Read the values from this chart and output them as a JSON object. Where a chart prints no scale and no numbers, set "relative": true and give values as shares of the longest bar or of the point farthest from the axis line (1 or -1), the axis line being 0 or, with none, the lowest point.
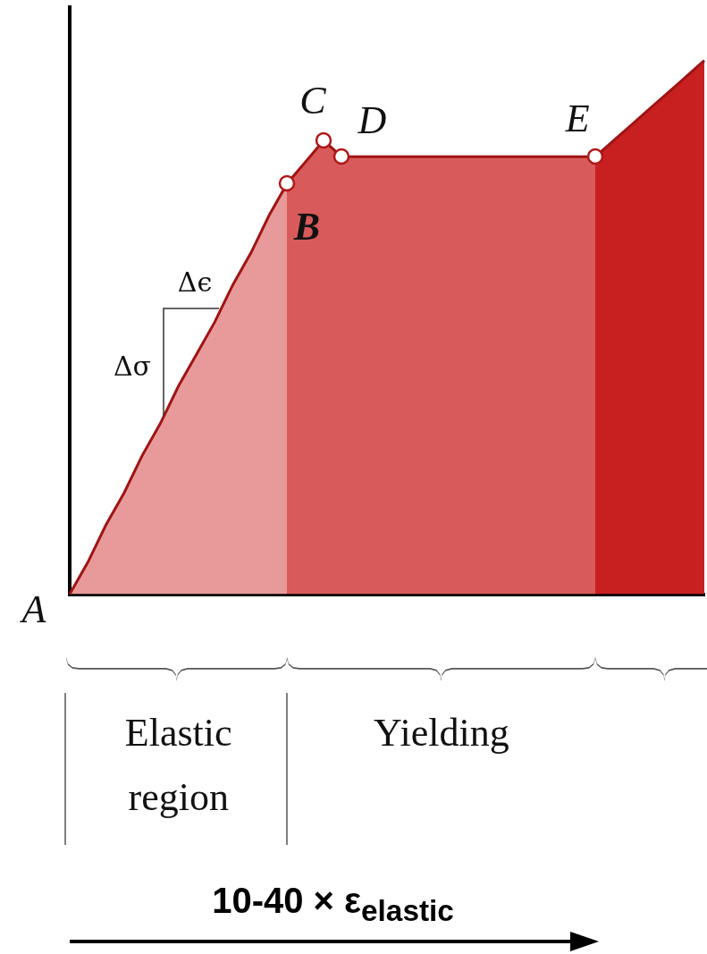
{
  "chart_data": {
    "type": "area",
    "relative": true,
    "grid": false,
    "legend": false,
    "categories": [
      null,
      null,
      null,
      null,
      null,
      null,
      null,
      null,
      null,
      null,
      null,
      null,
      null,
      null,
      null,
      null,
      null,
      null,
      null,
      null,
      null,
      null,
      null,
      null,
      null,
      null,
      null,
      null,
      null,
      null,
      null,
      null,
      null,
      null,
      null,
      null
    ],
    "series": [
      {
        "color": "#a01414",
        "values": [
          0,
          0.06,
          0.13,
          0.19,
          0.26,
          0.32,
          0.39,
          0.45,
          0.51,
          0.58,
          0.64,
          0.71,
          0.77,
          0.81,
          0.85,
          0.82,
          0.82,
          0.82,
          0.82,
          0.82,
          0.82,
          0.82,
          0.82,
          0.82,
          0.82,
          0.82,
          0.82,
          0.82,
          0.82,
          0.82,
          0.85,
          0.88,
          0.91,
          0.94,
          0.97,
          1
        ],
        "colors": [
          "#e89a9a",
          "#e89a9a",
          "#e89a9a",
          "#e89a9a",
          "#e89a9a",
          "#e89a9a",
          "#e89a9a",
          "#e89a9a",
          "#e89a9a",
          "#e89a9a",
          "#e89a9a",
          "#e89a9a",
          "#d95a5a",
          "#d95a5a",
          "#d95a5a",
          "#d95a5a",
          "#d95a5a",
          "#d95a5a",
          "#d95a5a",
          "#d95a5a",
          "#d95a5a",
          "#d95a5a",
          "#d95a5a",
          "#d95a5a",
          "#d95a5a",
          "#d95a5a",
          "#d95a5a",
          "#d95a5a",
          "#d95a5a",
          "#c82020",
          "#c82020",
          "#c82020",
          "#c82020",
          "#c82020",
          "#c82020",
          "#c82020"
        ]
      }
    ],
    "annotations": [
      "A",
      "B",
      "C",
      "D",
      "E",
      "Δϵ",
      "Δσ",
      "Elastic region",
      "Yielding",
      "10-40 × ε$_{elastic}$"
    ]
  }
}
